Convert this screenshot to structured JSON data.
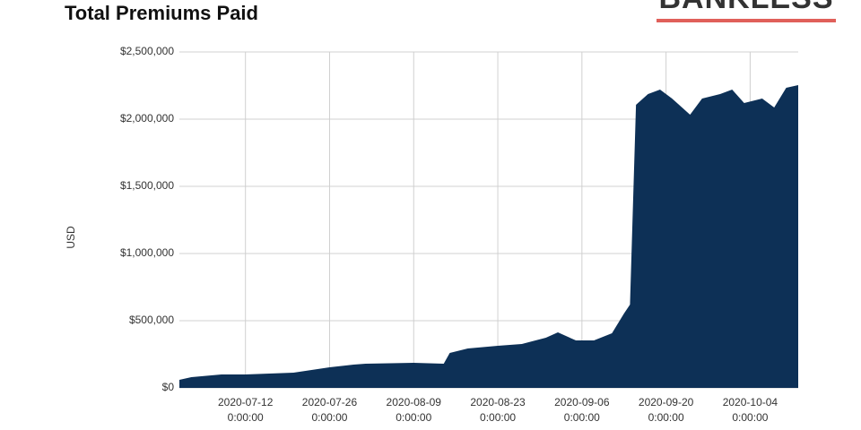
{
  "brand": "BANKLESS",
  "chart_data": {
    "type": "area",
    "title": "Total Premiums Paid",
    "ylabel": "USD",
    "x": [
      "2020-07-01",
      "2020-07-03",
      "2020-07-08",
      "2020-07-12",
      "2020-07-20",
      "2020-07-26",
      "2020-07-30",
      "2020-08-01",
      "2020-08-09",
      "2020-08-14",
      "2020-08-15",
      "2020-08-18",
      "2020-08-23",
      "2020-08-27",
      "2020-08-31",
      "2020-09-02",
      "2020-09-05",
      "2020-09-08",
      "2020-09-11",
      "2020-09-13",
      "2020-09-14",
      "2020-09-15",
      "2020-09-17",
      "2020-09-19",
      "2020-09-21",
      "2020-09-24",
      "2020-09-26",
      "2020-09-29",
      "2020-10-01",
      "2020-10-03",
      "2020-10-06",
      "2020-10-08",
      "2020-10-10",
      "2020-10-12"
    ],
    "series": [
      {
        "name": "USD",
        "color": "#0d3056",
        "values": [
          60000,
          80000,
          100000,
          100000,
          113000,
          153000,
          173000,
          180000,
          187000,
          180000,
          260000,
          293000,
          313000,
          327000,
          373000,
          413000,
          353000,
          353000,
          407000,
          553000,
          620000,
          2107000,
          2187000,
          2220000,
          2153000,
          2033000,
          2153000,
          2187000,
          2220000,
          2120000,
          2153000,
          2087000,
          2233000,
          2253000
        ]
      }
    ],
    "xlim": [
      "2020-07-01",
      "2020-10-12"
    ],
    "xticks": [
      {
        "value": "2020-07-12",
        "label": "2020-07-12 0:00:00"
      },
      {
        "value": "2020-07-26",
        "label": "2020-07-26 0:00:00"
      },
      {
        "value": "2020-08-09",
        "label": "2020-08-09 0:00:00"
      },
      {
        "value": "2020-08-23",
        "label": "2020-08-23 0:00:00"
      },
      {
        "value": "2020-09-06",
        "label": "2020-09-06 0:00:00"
      },
      {
        "value": "2020-09-20",
        "label": "2020-09-20 0:00:00"
      },
      {
        "value": "2020-10-04",
        "label": "2020-10-04 0:00:00"
      }
    ],
    "ylim": [
      0,
      2500000
    ],
    "yticks": [
      {
        "value": 0,
        "label": "$0"
      },
      {
        "value": 500000,
        "label": "$500,000"
      },
      {
        "value": 1000000,
        "label": "$1,000,000"
      },
      {
        "value": 1500000,
        "label": "$1,500,000"
      },
      {
        "value": 2000000,
        "label": "$2,000,000"
      },
      {
        "value": 2500000,
        "label": "$2,500,000"
      }
    ],
    "grid": true
  }
}
